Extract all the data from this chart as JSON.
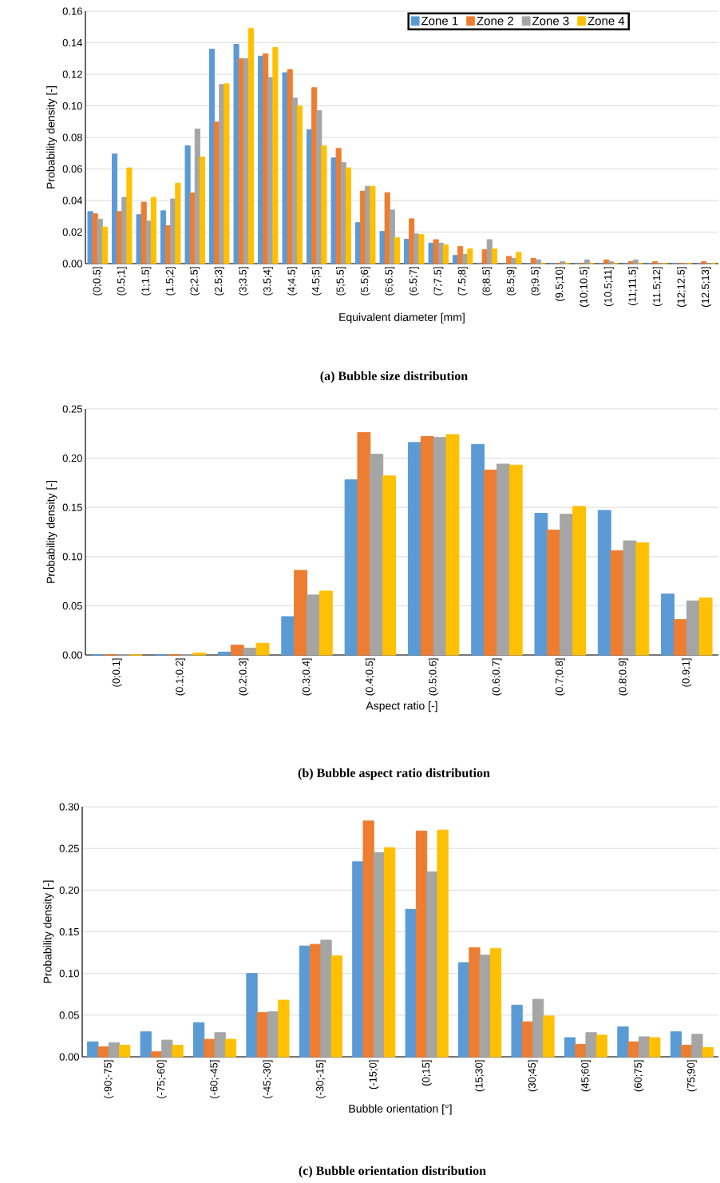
{
  "chart_data": [
    {
      "type": "bar",
      "title": "(a) Bubble size distribution",
      "xlabel": "Equivalent diameter [mm]",
      "ylabel": "Probability density [-]",
      "categories": [
        "(0;0.5]",
        "(0.5;1]",
        "(1;1.5]",
        "(1.5;2]",
        "(2;2.5]",
        "(2.5;3]",
        "(3;3.5]",
        "(3.5;4]",
        "(4;4.5]",
        "(4.5;5]",
        "(5;5.5]",
        "(5.5;6]",
        "(6;6.5]",
        "(6.5;7]",
        "(7;7.5]",
        "(7.5;8]",
        "(8;8.5]",
        "(8.5;9]",
        "(9;9.5]",
        "(9.5;10]",
        "(10;10.5]",
        "(10.5;11]",
        "(11;11.5]",
        "(11.5;12]",
        "(12;12.5]",
        "(12.5;13]"
      ],
      "series": [
        {
          "name": "Zone 1",
          "color": "#5b9bd5",
          "values": [
            0.033,
            0.0695,
            0.031,
            0.0335,
            0.0747,
            0.136,
            0.139,
            0.1315,
            0.121,
            0.085,
            0.067,
            0.026,
            0.0204,
            0.0155,
            0.013,
            0.0052,
            0,
            0,
            0,
            0,
            0,
            0,
            0,
            0,
            0,
            0
          ]
        },
        {
          "name": "Zone 2",
          "color": "#ed7d31",
          "values": [
            0.0316,
            0.033,
            0.039,
            0.024,
            0.0448,
            0.0897,
            0.13,
            0.133,
            0.123,
            0.1115,
            0.073,
            0.046,
            0.045,
            0.0284,
            0.0152,
            0.0108,
            0.0088,
            0.0046,
            0.0034,
            0,
            0,
            0.0024,
            0.0012,
            0.0012,
            0,
            0.0012
          ]
        },
        {
          "name": "Zone 3",
          "color": "#a5a5a5",
          "values": [
            0.0282,
            0.042,
            0.027,
            0.041,
            0.0853,
            0.1135,
            0.13,
            0.118,
            0.105,
            0.097,
            0.064,
            0.049,
            0.034,
            0.0188,
            0.013,
            0.0059,
            0.0152,
            0.0034,
            0.0024,
            0.0012,
            0.0024,
            0.0012,
            0.0024,
            0,
            0,
            0
          ]
        },
        {
          "name": "Zone 4",
          "color": "#ffc000",
          "values": [
            0.0232,
            0.0607,
            0.042,
            0.051,
            0.0676,
            0.114,
            0.149,
            0.137,
            0.1,
            0.0747,
            0.0607,
            0.049,
            0.0164,
            0.0184,
            0.0118,
            0.0093,
            0.0093,
            0.0071,
            0,
            0,
            0,
            0,
            0,
            0,
            0,
            0
          ]
        }
      ],
      "ylim": [
        0,
        0.16
      ],
      "yticks": [
        {
          "value": 0,
          "label": "0.00"
        },
        {
          "value": 0.02,
          "label": "0.02"
        },
        {
          "value": 0.04,
          "label": "0.04"
        },
        {
          "value": 0.06,
          "label": "0.06"
        },
        {
          "value": 0.08,
          "label": "0.08"
        },
        {
          "value": 0.1,
          "label": "0.10"
        },
        {
          "value": 0.12,
          "label": "0.12"
        },
        {
          "value": 0.14,
          "label": "0.14"
        },
        {
          "value": 0.16,
          "label": "0.16"
        }
      ],
      "grid": "y",
      "legend": "top right"
    },
    {
      "type": "bar",
      "title": "(b) Bubble aspect ratio distribution",
      "xlabel": "Aspect ratio [-]",
      "ylabel": "Probability density [-]",
      "categories": [
        "(0;0.1]",
        "(0.1;0.2]",
        "(0.2;0.3]",
        "(0.3;0.4]",
        "(0.4;0.5]",
        "(0.5;0.6]",
        "(0.6;0.7]",
        "(0.7;0.8]",
        "(0.8;0.9]",
        "(0.9;1]"
      ],
      "series": [
        {
          "color": "#5b9bd5",
          "values": [
            0,
            0,
            0.003,
            0.039,
            0.178,
            0.216,
            0.214,
            0.144,
            0.147,
            0.062
          ]
        },
        {
          "color": "#ed7d31",
          "values": [
            0,
            0,
            0.01,
            0.086,
            0.226,
            0.222,
            0.188,
            0.127,
            0.106,
            0.036
          ]
        },
        {
          "color": "#a5a5a5",
          "values": [
            0,
            0,
            0.007,
            0.061,
            0.204,
            0.221,
            0.194,
            0.143,
            0.116,
            0.055
          ]
        },
        {
          "color": "#ffc000",
          "values": [
            0,
            0.002,
            0.012,
            0.065,
            0.182,
            0.224,
            0.193,
            0.151,
            0.114,
            0.058
          ]
        }
      ],
      "ylim": [
        0,
        0.25
      ],
      "yticks": [
        {
          "value": 0,
          "label": "0.00"
        },
        {
          "value": 0.05,
          "label": "0.05"
        },
        {
          "value": 0.1,
          "label": "0.10"
        },
        {
          "value": 0.15,
          "label": "0.15"
        },
        {
          "value": 0.2,
          "label": "0.20"
        },
        {
          "value": 0.25,
          "label": "0.25"
        }
      ],
      "grid": "y"
    },
    {
      "type": "bar",
      "title": "(c) Bubble orientation distribution",
      "xlabel": "Bubble orientation [°]",
      "ylabel": "Probability density [-]",
      "categories": [
        "(-90;-75]",
        "(-75;-60]",
        "(-60;-45]",
        "(-45;-30]",
        "(-30;-15]",
        "(-15;0]",
        "(0;15]",
        "(15;30]",
        "(30;45]",
        "(45;60]",
        "(60;75]",
        "(75;90]"
      ],
      "series": [
        {
          "color": "#5b9bd5",
          "values": [
            0.018,
            0.03,
            0.041,
            0.1,
            0.133,
            0.234,
            0.177,
            0.113,
            0.062,
            0.023,
            0.036,
            0.03
          ]
        },
        {
          "color": "#ed7d31",
          "values": [
            0.012,
            0.006,
            0.021,
            0.053,
            0.135,
            0.283,
            0.271,
            0.131,
            0.042,
            0.015,
            0.018,
            0.014
          ]
        },
        {
          "color": "#a5a5a5",
          "values": [
            0.017,
            0.02,
            0.029,
            0.054,
            0.14,
            0.245,
            0.222,
            0.122,
            0.069,
            0.029,
            0.024,
            0.027
          ]
        },
        {
          "color": "#ffc000",
          "values": [
            0.014,
            0.014,
            0.021,
            0.068,
            0.121,
            0.251,
            0.272,
            0.13,
            0.049,
            0.026,
            0.023,
            0.011
          ]
        }
      ],
      "ylim": [
        0,
        0.3
      ],
      "yticks": [
        {
          "value": 0,
          "label": "0.00"
        },
        {
          "value": 0.05,
          "label": "0.05"
        },
        {
          "value": 0.1,
          "label": "0.10"
        },
        {
          "value": 0.15,
          "label": "0.15"
        },
        {
          "value": 0.2,
          "label": "0.20"
        },
        {
          "value": 0.25,
          "label": "0.25"
        },
        {
          "value": 0.3,
          "label": "0.30"
        }
      ],
      "grid": "y"
    }
  ]
}
